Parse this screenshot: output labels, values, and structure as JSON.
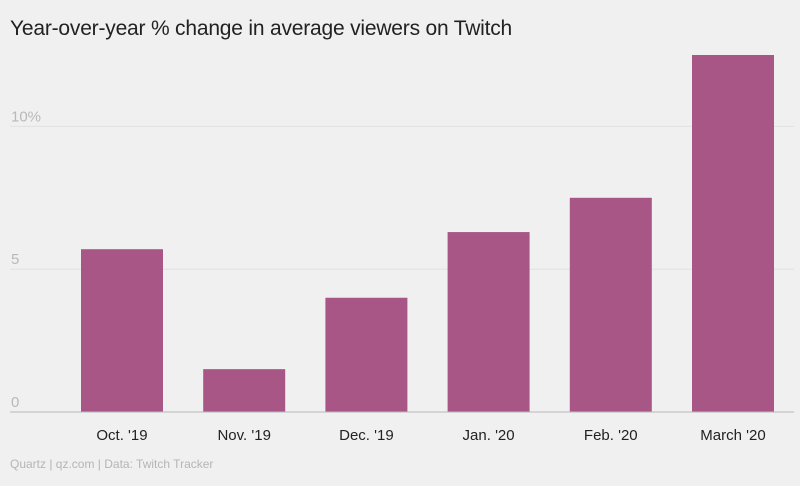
{
  "chart_data": {
    "type": "bar",
    "title": "Year-over-year % change in average viewers on Twitch",
    "categories": [
      "Oct. '19",
      "Nov. '19",
      "Dec. '19",
      "Jan. '20",
      "Feb. '20",
      "March '20"
    ],
    "values": [
      5.7,
      1.5,
      4.0,
      6.3,
      7.5,
      12.5
    ],
    "ylim": [
      0,
      12.5
    ],
    "yticks": [
      0,
      5,
      10
    ],
    "ytick_labels": [
      "0",
      "5",
      "10%"
    ],
    "grid": true,
    "xlabel": "",
    "ylabel": "",
    "colors": {
      "bar": "#a75685",
      "grid": "#e2e1e2",
      "baseline": "#b9b9b9"
    }
  },
  "source": "Quartz | qz.com | Data: Twitch Tracker"
}
